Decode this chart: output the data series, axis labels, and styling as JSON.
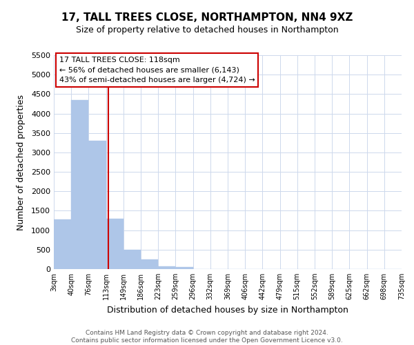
{
  "title": "17, TALL TREES CLOSE, NORTHAMPTON, NN4 9XZ",
  "subtitle": "Size of property relative to detached houses in Northampton",
  "xlabel": "Distribution of detached houses by size in Northampton",
  "ylabel": "Number of detached properties",
  "footer_line1": "Contains HM Land Registry data © Crown copyright and database right 2024.",
  "footer_line2": "Contains public sector information licensed under the Open Government Licence v3.0.",
  "bar_edges": [
    3,
    40,
    76,
    113,
    149,
    186,
    223,
    259,
    296,
    332,
    369,
    406,
    442,
    479,
    515,
    552,
    589,
    625,
    662,
    698,
    735
  ],
  "bar_heights": [
    1270,
    4350,
    3300,
    1290,
    490,
    240,
    75,
    45,
    0,
    0,
    0,
    0,
    0,
    0,
    0,
    0,
    0,
    0,
    0,
    0
  ],
  "bar_color": "#aec6e8",
  "vline_x": 118,
  "vline_color": "#cc0000",
  "ann_line1": "17 TALL TREES CLOSE: 118sqm",
  "ann_line2": "← 56% of detached houses are smaller (6,143)",
  "ann_line3": "43% of semi-detached houses are larger (4,724) →",
  "ylim": [
    0,
    5500
  ],
  "yticks": [
    0,
    500,
    1000,
    1500,
    2000,
    2500,
    3000,
    3500,
    4000,
    4500,
    5000,
    5500
  ],
  "tick_labels": [
    "3sqm",
    "40sqm",
    "76sqm",
    "113sqm",
    "149sqm",
    "186sqm",
    "223sqm",
    "259sqm",
    "296sqm",
    "332sqm",
    "369sqm",
    "406sqm",
    "442sqm",
    "479sqm",
    "515sqm",
    "552sqm",
    "589sqm",
    "625sqm",
    "662sqm",
    "698sqm",
    "735sqm"
  ],
  "background_color": "#ffffff",
  "grid_color": "#cdd8ec"
}
